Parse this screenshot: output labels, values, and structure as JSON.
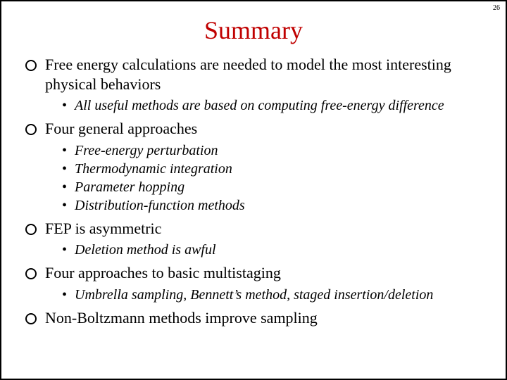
{
  "pageNumber": "26",
  "title": "Summary",
  "colors": {
    "titleColor": "#c00000",
    "textColor": "#000000",
    "borderColor": "#000000",
    "background": "#ffffff"
  },
  "typography": {
    "titleFontSize": 36,
    "level1FontSize": 22,
    "level2FontSize": 20,
    "fontFamily": "Times New Roman"
  },
  "bullets": [
    {
      "text": "Free energy calculations are needed to model the most interesting physical behaviors",
      "sub": [
        "All useful methods are based on computing free-energy difference"
      ]
    },
    {
      "text": "Four general approaches",
      "sub": [
        "Free-energy perturbation",
        "Thermodynamic integration",
        "Parameter hopping",
        "Distribution-function methods"
      ]
    },
    {
      "text": "FEP is asymmetric",
      "sub": [
        "Deletion method is awful"
      ]
    },
    {
      "text": "Four approaches to basic multistaging",
      "sub": [
        "Umbrella sampling, Bennett’s method, staged insertion/deletion"
      ]
    },
    {
      "text": "Non-Boltzmann methods improve sampling",
      "sub": []
    }
  ]
}
